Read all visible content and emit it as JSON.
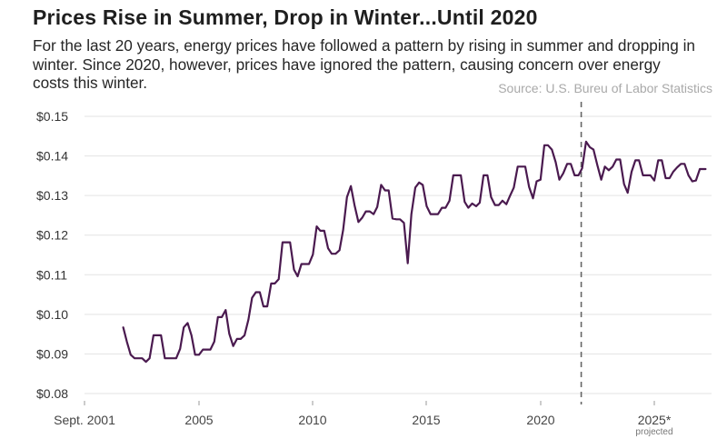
{
  "header": {
    "title": "Prices Rise in Summer, Drop in Winter...Until 2020",
    "subtitle": "For the last 20 years, energy prices have followed a pattern by rising in summer and dropping in winter. Since 2020, however, prices have ignored the pattern, causing concern over energy costs this winter.",
    "source": "Source: U.S. Bureu of Labor Statistics"
  },
  "chart_data": {
    "type": "line",
    "title": "Prices Rise in Summer, Drop in Winter...Until 2020",
    "xlabel": "",
    "ylabel": "",
    "ylim": [
      0.08,
      0.15
    ],
    "xlim": [
      2001.67,
      2027.25
    ],
    "y_ticks": [
      {
        "value": 0.15,
        "label": "$0.15"
      },
      {
        "value": 0.14,
        "label": "$0.14"
      },
      {
        "value": 0.13,
        "label": "$0.13"
      },
      {
        "value": 0.12,
        "label": "$0.12"
      },
      {
        "value": 0.11,
        "label": "$0.11"
      },
      {
        "value": 0.1,
        "label": "$0.10"
      },
      {
        "value": 0.09,
        "label": "$0.09"
      },
      {
        "value": 0.08,
        "label": "$0.08"
      }
    ],
    "x_ticks": [
      {
        "value": 2001.67,
        "label": "Sept. 2001"
      },
      {
        "value": 2005,
        "label": "2005"
      },
      {
        "value": 2010,
        "label": "2010"
      },
      {
        "value": 2015,
        "label": "2015"
      },
      {
        "value": 2020,
        "label": "2020"
      },
      {
        "value": 2025,
        "label": "2025*",
        "note": "projected"
      }
    ],
    "reference_line": {
      "x": 2021.75,
      "style": "dashed"
    },
    "grid": true,
    "series": [
      {
        "color": "#4a1a4f",
        "points": [
          [
            2001.67,
            0.0967
          ],
          [
            2001.83,
            0.0931
          ],
          [
            2002.0,
            0.0898
          ],
          [
            2002.17,
            0.0889
          ],
          [
            2002.33,
            0.0889
          ],
          [
            2002.5,
            0.0889
          ],
          [
            2002.67,
            0.088
          ],
          [
            2002.83,
            0.0889
          ],
          [
            2003.0,
            0.0947
          ],
          [
            2003.17,
            0.0947
          ],
          [
            2003.33,
            0.0947
          ],
          [
            2003.5,
            0.0889
          ],
          [
            2003.67,
            0.0889
          ],
          [
            2003.83,
            0.0889
          ],
          [
            2004.0,
            0.0889
          ],
          [
            2004.17,
            0.0913
          ],
          [
            2004.33,
            0.0967
          ],
          [
            2004.5,
            0.0978
          ],
          [
            2004.67,
            0.0947
          ],
          [
            2004.83,
            0.0898
          ],
          [
            2005.0,
            0.0898
          ],
          [
            2005.17,
            0.0911
          ],
          [
            2005.33,
            0.0911
          ],
          [
            2005.5,
            0.0911
          ],
          [
            2005.67,
            0.0931
          ],
          [
            2005.83,
            0.0993
          ],
          [
            2006.0,
            0.0993
          ],
          [
            2006.17,
            0.1011
          ],
          [
            2006.33,
            0.0951
          ],
          [
            2006.5,
            0.092
          ],
          [
            2006.67,
            0.0938
          ],
          [
            2006.83,
            0.0938
          ],
          [
            2007.0,
            0.0947
          ],
          [
            2007.17,
            0.0987
          ],
          [
            2007.33,
            0.1042
          ],
          [
            2007.5,
            0.1056
          ],
          [
            2007.67,
            0.1056
          ],
          [
            2007.83,
            0.102
          ],
          [
            2008.0,
            0.102
          ],
          [
            2008.17,
            0.1078
          ],
          [
            2008.33,
            0.1078
          ],
          [
            2008.5,
            0.1089
          ],
          [
            2008.67,
            0.1182
          ],
          [
            2008.83,
            0.1182
          ],
          [
            2009.0,
            0.1182
          ],
          [
            2009.17,
            0.1113
          ],
          [
            2009.33,
            0.1096
          ],
          [
            2009.5,
            0.1127
          ],
          [
            2009.67,
            0.1127
          ],
          [
            2009.83,
            0.1127
          ],
          [
            2010.0,
            0.1151
          ],
          [
            2010.17,
            0.1222
          ],
          [
            2010.33,
            0.1211
          ],
          [
            2010.5,
            0.1211
          ],
          [
            2010.67,
            0.1167
          ],
          [
            2010.83,
            0.1153
          ],
          [
            2011.0,
            0.1153
          ],
          [
            2011.17,
            0.1162
          ],
          [
            2011.33,
            0.1213
          ],
          [
            2011.5,
            0.1296
          ],
          [
            2011.67,
            0.1324
          ],
          [
            2011.83,
            0.1276
          ],
          [
            2012.0,
            0.1233
          ],
          [
            2012.17,
            0.1244
          ],
          [
            2012.33,
            0.126
          ],
          [
            2012.5,
            0.126
          ],
          [
            2012.67,
            0.1253
          ],
          [
            2012.83,
            0.1271
          ],
          [
            2013.0,
            0.1327
          ],
          [
            2013.17,
            0.1313
          ],
          [
            2013.33,
            0.1313
          ],
          [
            2013.5,
            0.1242
          ],
          [
            2013.67,
            0.124
          ],
          [
            2013.83,
            0.124
          ],
          [
            2014.0,
            0.1231
          ],
          [
            2014.17,
            0.1129
          ],
          [
            2014.33,
            0.1253
          ],
          [
            2014.5,
            0.132
          ],
          [
            2014.67,
            0.1333
          ],
          [
            2014.83,
            0.1327
          ],
          [
            2015.0,
            0.1273
          ],
          [
            2015.17,
            0.1253
          ],
          [
            2015.33,
            0.1253
          ],
          [
            2015.5,
            0.1253
          ],
          [
            2015.67,
            0.1269
          ],
          [
            2015.83,
            0.1269
          ],
          [
            2016.0,
            0.1287
          ],
          [
            2016.17,
            0.1351
          ],
          [
            2016.33,
            0.1351
          ],
          [
            2016.5,
            0.1351
          ],
          [
            2016.67,
            0.1284
          ],
          [
            2016.83,
            0.1269
          ],
          [
            2017.0,
            0.128
          ],
          [
            2017.17,
            0.1273
          ],
          [
            2017.33,
            0.1282
          ],
          [
            2017.5,
            0.1351
          ],
          [
            2017.67,
            0.1351
          ],
          [
            2017.83,
            0.1296
          ],
          [
            2018.0,
            0.1276
          ],
          [
            2018.17,
            0.1276
          ],
          [
            2018.33,
            0.1287
          ],
          [
            2018.5,
            0.1278
          ],
          [
            2018.67,
            0.13
          ],
          [
            2018.83,
            0.132
          ],
          [
            2019.0,
            0.1373
          ],
          [
            2019.17,
            0.1373
          ],
          [
            2019.33,
            0.1373
          ],
          [
            2019.5,
            0.1322
          ],
          [
            2019.67,
            0.1293
          ],
          [
            2019.83,
            0.1336
          ],
          [
            2020.0,
            0.134
          ],
          [
            2020.17,
            0.1427
          ],
          [
            2020.33,
            0.1427
          ],
          [
            2020.5,
            0.1416
          ],
          [
            2020.67,
            0.1384
          ],
          [
            2020.83,
            0.134
          ],
          [
            2021.0,
            0.1356
          ],
          [
            2021.17,
            0.138
          ],
          [
            2021.33,
            0.138
          ],
          [
            2021.5,
            0.1351
          ],
          [
            2021.67,
            0.1351
          ],
          [
            2021.83,
            0.1369
          ],
          [
            2022.0,
            0.1436
          ],
          [
            2022.17,
            0.1422
          ],
          [
            2022.33,
            0.1416
          ],
          [
            2022.5,
            0.1376
          ],
          [
            2022.67,
            0.134
          ],
          [
            2022.83,
            0.1373
          ],
          [
            2023.0,
            0.1364
          ],
          [
            2023.17,
            0.1373
          ],
          [
            2023.33,
            0.1391
          ],
          [
            2023.5,
            0.1391
          ],
          [
            2023.67,
            0.1329
          ],
          [
            2023.83,
            0.1307
          ],
          [
            2024.0,
            0.136
          ],
          [
            2024.17,
            0.1389
          ],
          [
            2024.33,
            0.1389
          ],
          [
            2024.5,
            0.1351
          ],
          [
            2024.67,
            0.1351
          ],
          [
            2024.83,
            0.1351
          ],
          [
            2025.0,
            0.1338
          ],
          [
            2025.17,
            0.1389
          ],
          [
            2025.33,
            0.1389
          ],
          [
            2025.5,
            0.1344
          ],
          [
            2025.67,
            0.1344
          ],
          [
            2025.83,
            0.136
          ],
          [
            2026.0,
            0.1371
          ],
          [
            2026.17,
            0.138
          ],
          [
            2026.33,
            0.138
          ],
          [
            2026.5,
            0.1351
          ],
          [
            2026.67,
            0.1336
          ],
          [
            2026.83,
            0.1338
          ],
          [
            2027.0,
            0.1367
          ],
          [
            2027.17,
            0.1367
          ],
          [
            2027.25,
            0.1367
          ]
        ]
      }
    ]
  }
}
